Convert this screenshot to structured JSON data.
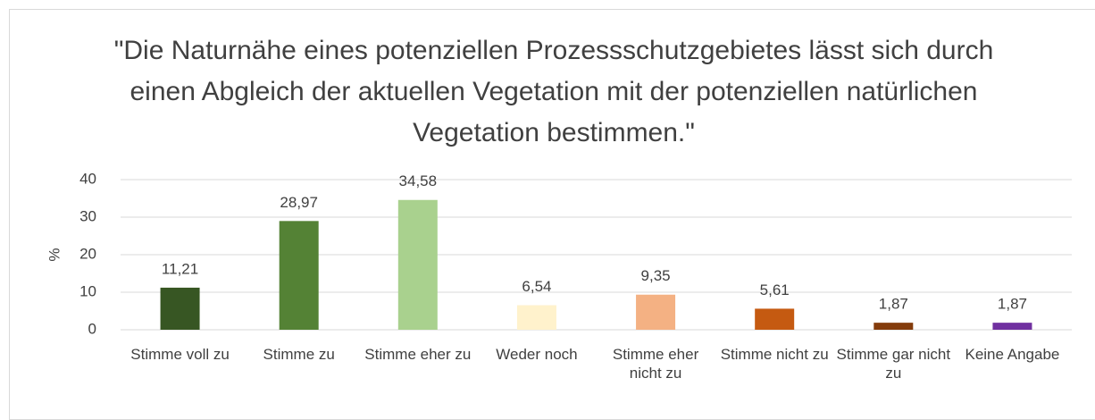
{
  "chart_data": {
    "type": "bar",
    "title": "\"Die Naturnähe eines potenziellen Prozessschutzgebietes lässt sich durch einen Abgleich der aktuellen Vegetation mit der potenziellen natürlichen Vegetation bestimmen.\"",
    "ylabel": "%",
    "categories": [
      "Stimme voll zu",
      "Stimme zu",
      "Stimme eher zu",
      "Weder noch",
      "Stimme eher nicht zu",
      "Stimme nicht zu",
      "Stimme gar nicht zu",
      "Keine Angabe"
    ],
    "values": [
      11.21,
      28.97,
      34.58,
      6.54,
      9.35,
      5.61,
      1.87,
      1.87
    ],
    "value_labels": [
      "11,21",
      "28,97",
      "34,58",
      "6,54",
      "9,35",
      "5,61",
      "1,87",
      "1,87"
    ],
    "colors": [
      "#375623",
      "#548235",
      "#a9d18e",
      "#fff2cc",
      "#f4b183",
      "#c55a11",
      "#843c0c",
      "#7030a0"
    ],
    "ylim": [
      0,
      40
    ],
    "yticks": [
      0,
      10,
      20,
      30,
      40
    ],
    "grid": true
  }
}
